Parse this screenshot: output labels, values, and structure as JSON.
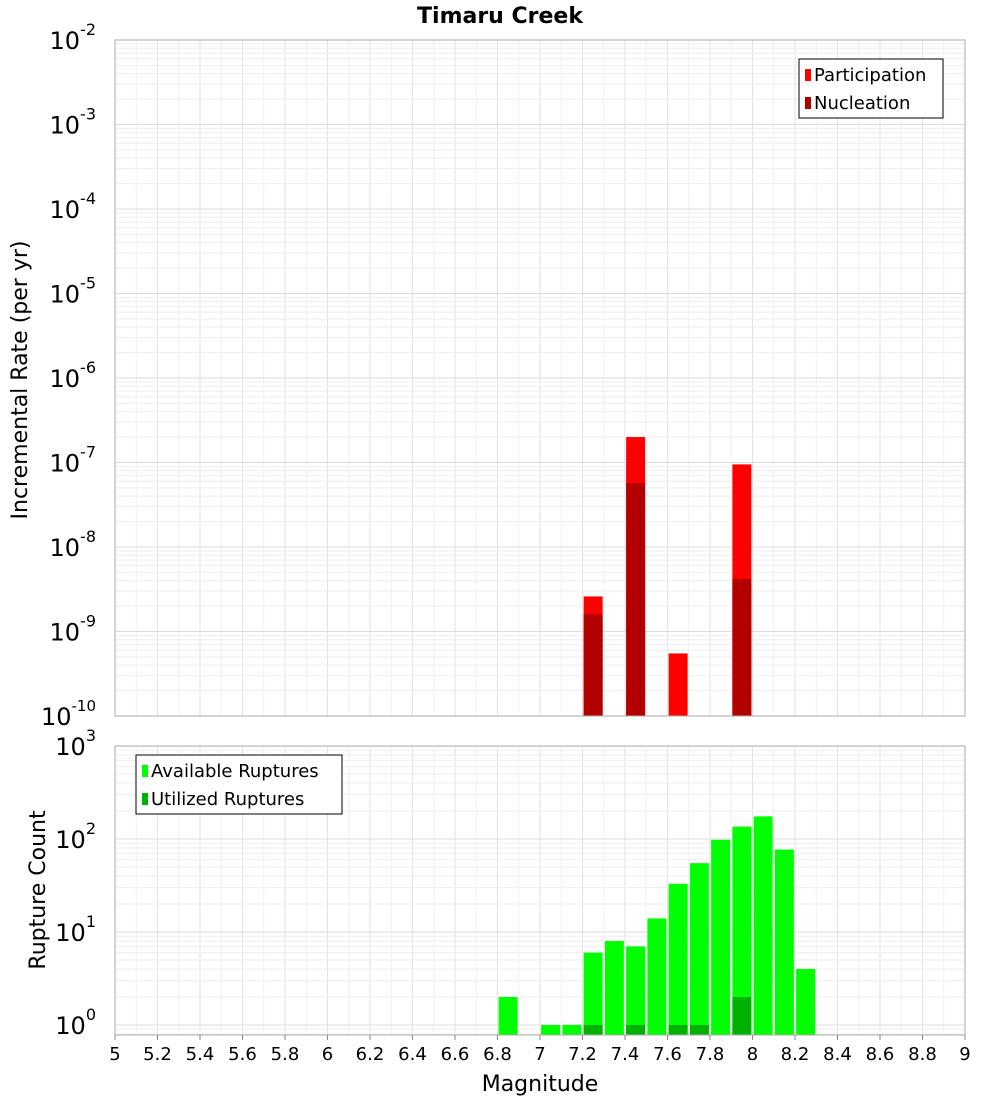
{
  "chart_data": [
    {
      "type": "bar",
      "panel": "top",
      "title": "Timaru Creek",
      "ylabel": "Incremental Rate (per yr)",
      "yscale": "log",
      "ylim": [
        1e-10,
        0.01
      ],
      "y_tick_labels": [
        {
          "base": "10",
          "exp": "-10"
        },
        {
          "base": "10",
          "exp": "-9"
        },
        {
          "base": "10",
          "exp": "-8"
        },
        {
          "base": "10",
          "exp": "-7"
        },
        {
          "base": "10",
          "exp": "-6"
        },
        {
          "base": "10",
          "exp": "-5"
        },
        {
          "base": "10",
          "exp": "-4"
        },
        {
          "base": "10",
          "exp": "-3"
        },
        {
          "base": "10",
          "exp": "-2"
        }
      ],
      "xlim": [
        5,
        9
      ],
      "grid": true,
      "legend_position": "top-right",
      "series": [
        {
          "name": "Participation",
          "color": "#ff0000",
          "points": [
            {
              "x": 7.25,
              "y": 2.6e-09
            },
            {
              "x": 7.45,
              "y": 2e-07
            },
            {
              "x": 7.65,
              "y": 5.5e-10
            },
            {
              "x": 7.95,
              "y": 9.5e-08
            }
          ]
        },
        {
          "name": "Nucleation",
          "color": "#b20000",
          "points": [
            {
              "x": 7.25,
              "y": 1.6e-09
            },
            {
              "x": 7.45,
              "y": 5.7e-08
            },
            {
              "x": 7.95,
              "y": 4.2e-09
            }
          ]
        }
      ]
    },
    {
      "type": "bar",
      "panel": "bottom",
      "ylabel": "Rupture Count",
      "xlabel": "Magnitude",
      "yscale": "log",
      "ylim": [
        0.78,
        1000
      ],
      "y_tick_labels": [
        {
          "base": "10",
          "exp": "0"
        },
        {
          "base": "10",
          "exp": "1"
        },
        {
          "base": "10",
          "exp": "2"
        },
        {
          "base": "10",
          "exp": "3"
        }
      ],
      "xlim": [
        5,
        9
      ],
      "x_tick_labels": [
        "5",
        "5.2",
        "5.4",
        "5.6",
        "5.8",
        "6",
        "6.2",
        "6.4",
        "6.6",
        "6.8",
        "7",
        "7.2",
        "7.4",
        "7.6",
        "7.8",
        "8",
        "8.2",
        "8.4",
        "8.6",
        "8.8",
        "9"
      ],
      "grid": true,
      "legend_position": "top-left",
      "series": [
        {
          "name": "Available Ruptures",
          "color": "#00ff00",
          "points": [
            {
              "x": 6.85,
              "y": 2
            },
            {
              "x": 7.05,
              "y": 1
            },
            {
              "x": 7.15,
              "y": 1
            },
            {
              "x": 7.25,
              "y": 6
            },
            {
              "x": 7.35,
              "y": 8
            },
            {
              "x": 7.45,
              "y": 7
            },
            {
              "x": 7.55,
              "y": 14
            },
            {
              "x": 7.65,
              "y": 33
            },
            {
              "x": 7.75,
              "y": 55
            },
            {
              "x": 7.85,
              "y": 98
            },
            {
              "x": 7.95,
              "y": 136
            },
            {
              "x": 8.05,
              "y": 175
            },
            {
              "x": 8.15,
              "y": 77
            },
            {
              "x": 8.25,
              "y": 4
            }
          ]
        },
        {
          "name": "Utilized Ruptures",
          "color": "#00b200",
          "points": [
            {
              "x": 7.25,
              "y": 1
            },
            {
              "x": 7.45,
              "y": 1
            },
            {
              "x": 7.65,
              "y": 1
            },
            {
              "x": 7.75,
              "y": 1
            },
            {
              "x": 7.95,
              "y": 2
            }
          ]
        }
      ]
    }
  ]
}
